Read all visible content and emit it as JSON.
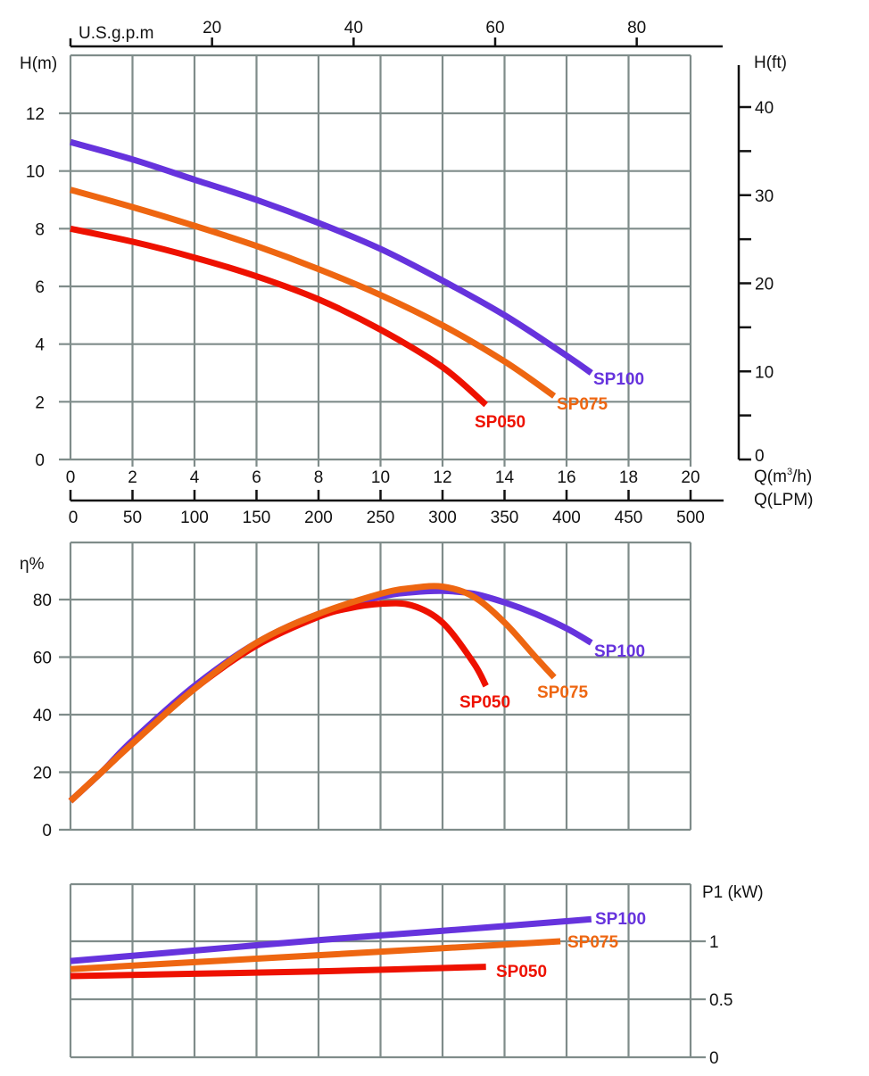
{
  "chart_data": [
    {
      "id": "head",
      "type": "line",
      "title": "",
      "xlabel": "Q(m³/h)",
      "ylabel": "H(m)",
      "secondary_ylabel": "H(ft)",
      "top_xlabel": "U.S.g.p.m",
      "lpm_xlabel": "Q(LPM)",
      "xlim": [
        0,
        20
      ],
      "ylim": [
        0,
        14
      ],
      "grid": true,
      "x_ticks": [
        "0",
        "2",
        "4",
        "6",
        "8",
        "10",
        "12",
        "14",
        "16",
        "18",
        "20"
      ],
      "y_ticks": [
        "0",
        "2",
        "4",
        "6",
        "8",
        "10",
        "12"
      ],
      "gpm_ticks": [
        "20",
        "40",
        "60",
        "80"
      ],
      "lpm_ticks": [
        "0",
        "50",
        "100",
        "150",
        "200",
        "250",
        "300",
        "350",
        "400",
        "450",
        "500"
      ],
      "ft_ticks": [
        "0",
        "10",
        "20",
        "30",
        "40"
      ],
      "series": [
        {
          "name": "SP100",
          "color": "#6633dd",
          "x": [
            0,
            2,
            4,
            6,
            8,
            10,
            12,
            14,
            16,
            16.8
          ],
          "y": [
            11.0,
            10.4,
            9.7,
            9.0,
            8.2,
            7.3,
            6.2,
            5.0,
            3.6,
            3.0
          ]
        },
        {
          "name": "SP075",
          "color": "#ee6611",
          "x": [
            0,
            2,
            4,
            6,
            8,
            10,
            12,
            14,
            15.6
          ],
          "y": [
            9.35,
            8.75,
            8.1,
            7.4,
            6.6,
            5.7,
            4.65,
            3.4,
            2.2
          ]
        },
        {
          "name": "SP050",
          "color": "#ee1100",
          "x": [
            0,
            2,
            4,
            6,
            8,
            10,
            12,
            13.4
          ],
          "y": [
            8.0,
            7.55,
            7.0,
            6.35,
            5.55,
            4.5,
            3.2,
            1.9
          ]
        }
      ]
    },
    {
      "id": "efficiency",
      "type": "line",
      "title": "",
      "ylabel": "η%",
      "xlim": [
        0,
        20
      ],
      "ylim": [
        0,
        100
      ],
      "grid": true,
      "y_ticks": [
        "0",
        "20",
        "40",
        "60",
        "80"
      ],
      "series": [
        {
          "name": "SP100",
          "color": "#6633dd",
          "x": [
            0,
            1,
            2,
            4,
            6,
            8,
            10,
            11,
            12,
            13,
            14,
            15,
            16,
            16.8
          ],
          "y": [
            10,
            20,
            31,
            50,
            65,
            75,
            81,
            82.5,
            83,
            82,
            79,
            75,
            70,
            65
          ]
        },
        {
          "name": "SP075",
          "color": "#ee6611",
          "x": [
            0,
            1,
            2,
            4,
            6,
            8,
            10,
            11,
            12,
            13,
            14,
            15,
            15.6
          ],
          "y": [
            10,
            20,
            30,
            49,
            65,
            75,
            82,
            84,
            84.5,
            81,
            72,
            60,
            53
          ]
        },
        {
          "name": "SP050",
          "color": "#ee1100",
          "x": [
            0,
            1,
            2,
            4,
            6,
            8,
            9,
            10,
            11,
            12,
            13,
            13.4
          ],
          "y": [
            10,
            20,
            30,
            49,
            64,
            74,
            77,
            78.5,
            78,
            72,
            58,
            50
          ]
        }
      ]
    },
    {
      "id": "power",
      "type": "line",
      "title": "",
      "ylabel": "P1 (kW)",
      "xlim": [
        0,
        20
      ],
      "ylim": [
        0,
        1.5
      ],
      "grid": true,
      "y_ticks": [
        "0",
        "0.5",
        "1"
      ],
      "series": [
        {
          "name": "SP100",
          "color": "#6633dd",
          "x": [
            0,
            4,
            8,
            12,
            16.8
          ],
          "y": [
            0.83,
            0.92,
            1.01,
            1.09,
            1.19
          ]
        },
        {
          "name": "SP075",
          "color": "#ee6611",
          "x": [
            0,
            4,
            8,
            12,
            15.8
          ],
          "y": [
            0.76,
            0.82,
            0.88,
            0.94,
            1.0
          ]
        },
        {
          "name": "SP050",
          "color": "#ee1100",
          "x": [
            0,
            4,
            8,
            13.4
          ],
          "y": [
            0.7,
            0.72,
            0.74,
            0.78
          ]
        }
      ]
    }
  ]
}
